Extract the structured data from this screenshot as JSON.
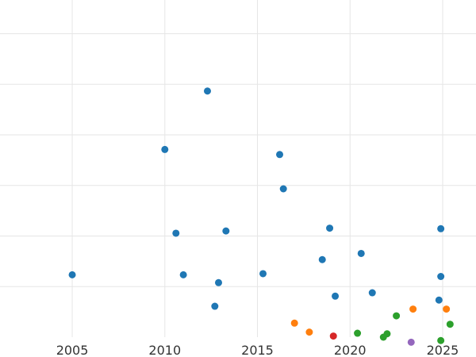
{
  "chart_data": {
    "type": "scatter",
    "title": "",
    "xlabel": "",
    "ylabel": "",
    "xlim": [
      2001.1,
      2026.8
    ],
    "ylim": [
      0,
      6
    ],
    "x_ticks": [
      2005,
      2010,
      2015,
      2020,
      2025
    ],
    "y_gridlines": [
      0.9,
      1.8,
      2.7,
      3.6,
      4.5,
      5.4
    ],
    "grid": true,
    "colors": {
      "blue": "#1f77b4",
      "orange": "#ff7f0e",
      "green": "#2ca02c",
      "red": "#d62728",
      "purple": "#9467bd",
      "grid": "#e6e6e6",
      "background": "#ffffff",
      "tick_text": "#333333"
    },
    "series": [
      {
        "color": "blue",
        "points": [
          {
            "x": 2005.0,
            "y": 1.11
          },
          {
            "x": 2010.0,
            "y": 3.34
          },
          {
            "x": 2010.6,
            "y": 1.85
          },
          {
            "x": 2011.0,
            "y": 1.11
          },
          {
            "x": 2012.3,
            "y": 4.38
          },
          {
            "x": 2012.7,
            "y": 0.55
          },
          {
            "x": 2012.9,
            "y": 0.97
          },
          {
            "x": 2013.3,
            "y": 1.89
          },
          {
            "x": 2015.3,
            "y": 1.13
          },
          {
            "x": 2016.2,
            "y": 3.25
          },
          {
            "x": 2016.4,
            "y": 2.64
          },
          {
            "x": 2018.5,
            "y": 1.38
          },
          {
            "x": 2018.9,
            "y": 1.94
          },
          {
            "x": 2019.2,
            "y": 0.73
          },
          {
            "x": 2020.6,
            "y": 1.49
          },
          {
            "x": 2021.2,
            "y": 0.79
          },
          {
            "x": 2024.8,
            "y": 0.66
          },
          {
            "x": 2024.9,
            "y": 1.93
          },
          {
            "x": 2024.9,
            "y": 1.08
          }
        ]
      },
      {
        "color": "orange",
        "points": [
          {
            "x": 2017.0,
            "y": 0.25
          },
          {
            "x": 2017.8,
            "y": 0.09
          },
          {
            "x": 2023.4,
            "y": 0.5
          },
          {
            "x": 2025.2,
            "y": 0.5
          }
        ]
      },
      {
        "color": "green",
        "points": [
          {
            "x": 2020.4,
            "y": 0.07
          },
          {
            "x": 2021.8,
            "y": 0.0
          },
          {
            "x": 2022.0,
            "y": 0.06
          },
          {
            "x": 2022.5,
            "y": 0.38
          },
          {
            "x": 2024.9,
            "y": -0.06
          },
          {
            "x": 2025.4,
            "y": 0.23
          }
        ]
      },
      {
        "color": "red",
        "points": [
          {
            "x": 2019.1,
            "y": 0.02
          }
        ]
      },
      {
        "color": "purple",
        "points": [
          {
            "x": 2023.3,
            "y": -0.09
          }
        ]
      }
    ]
  }
}
